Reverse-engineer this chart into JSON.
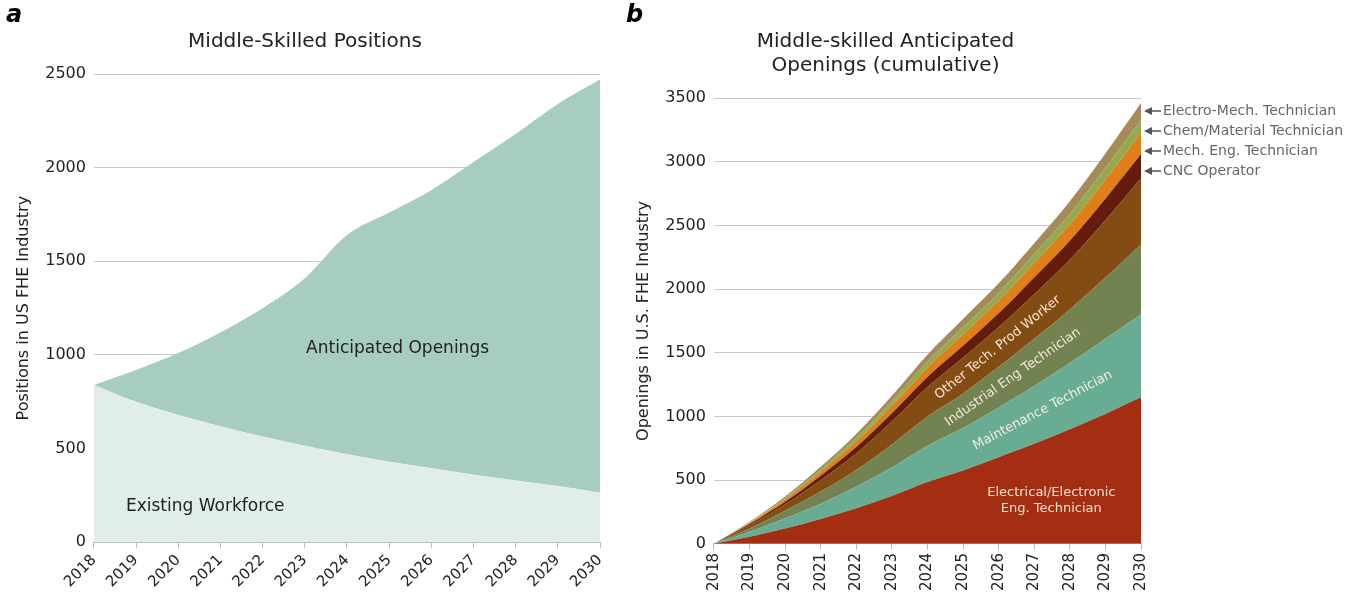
{
  "chart_data": [
    {
      "type": "area",
      "title": "Middle-Skilled Positions",
      "ylabel": "Positions in US FHE Industry",
      "annotations": [
        "a"
      ],
      "categories": [
        "2018",
        "2019",
        "2020",
        "2021",
        "2022",
        "2023",
        "2024",
        "2025",
        "2026",
        "2027",
        "2028",
        "2029",
        "2030"
      ],
      "stacked": true,
      "ylim": [
        0,
        2500
      ],
      "yticks": [
        0,
        500,
        1000,
        1500,
        2000,
        2500
      ],
      "grid": "y",
      "legend": false,
      "series": [
        {
          "name": "Existing Workforce",
          "color": "#e0ede8",
          "values": [
            840,
            750,
            680,
            620,
            565,
            515,
            470,
            430,
            395,
            360,
            330,
            300,
            265
          ]
        },
        {
          "name": "Anticipated Openings",
          "color": "#a7cdbf",
          "values": [
            0,
            170,
            330,
            500,
            685,
            895,
            1170,
            1330,
            1485,
            1670,
            1850,
            2040,
            2205
          ]
        }
      ]
    },
    {
      "type": "area",
      "title": "Middle-skilled Anticipated Openings (cumulative)",
      "ylabel": "Openings in U.S. FHE Industry",
      "annotations": [
        "b"
      ],
      "categories": [
        "2018",
        "2019",
        "2020",
        "2021",
        "2022",
        "2023",
        "2024",
        "2025",
        "2026",
        "2027",
        "2028",
        "2029",
        "2030"
      ],
      "stacked": true,
      "ylim": [
        0,
        3500
      ],
      "yticks": [
        0,
        500,
        1000,
        1500,
        2000,
        2500,
        3000,
        3500
      ],
      "grid": "y",
      "legend": false,
      "series": [
        {
          "name": "Electrical/Electronic Eng. Technician",
          "color": "#a32e12",
          "values": [
            0,
            55,
            120,
            195,
            280,
            375,
            485,
            575,
            680,
            785,
            900,
            1020,
            1150
          ]
        },
        {
          "name": "Maintenance Technician",
          "color": "#68ad93",
          "values": [
            0,
            40,
            80,
            120,
            170,
            225,
            285,
            335,
            390,
            455,
            520,
            590,
            650
          ]
        },
        {
          "name": "Industrial Eng Technician",
          "color": "#728251",
          "values": [
            0,
            25,
            60,
            95,
            130,
            180,
            230,
            270,
            320,
            370,
            420,
            480,
            550
          ]
        },
        {
          "name": "Other Tech. Prod Worker",
          "color": "#834c12",
          "values": [
            0,
            25,
            50,
            90,
            130,
            180,
            230,
            280,
            310,
            350,
            390,
            450,
            520
          ]
        },
        {
          "name": "CNC Operator",
          "color": "#641c0c",
          "values": [
            0,
            10,
            20,
            35,
            50,
            65,
            80,
            95,
            110,
            130,
            150,
            170,
            190
          ]
        },
        {
          "name": "Mech. Eng. Technician",
          "color": "#de7f1a",
          "values": [
            0,
            8,
            18,
            30,
            45,
            60,
            75,
            90,
            100,
            115,
            130,
            150,
            170
          ]
        },
        {
          "name": "Chem/Material Technician",
          "color": "#93aa4f",
          "values": [
            0,
            5,
            10,
            18,
            25,
            35,
            45,
            55,
            60,
            70,
            80,
            90,
            100
          ]
        },
        {
          "name": "Electro-Mech. Technician",
          "color": "#a58b57",
          "values": [
            0,
            6,
            13,
            22,
            32,
            42,
            55,
            65,
            75,
            85,
            100,
            115,
            130
          ]
        }
      ]
    }
  ]
}
